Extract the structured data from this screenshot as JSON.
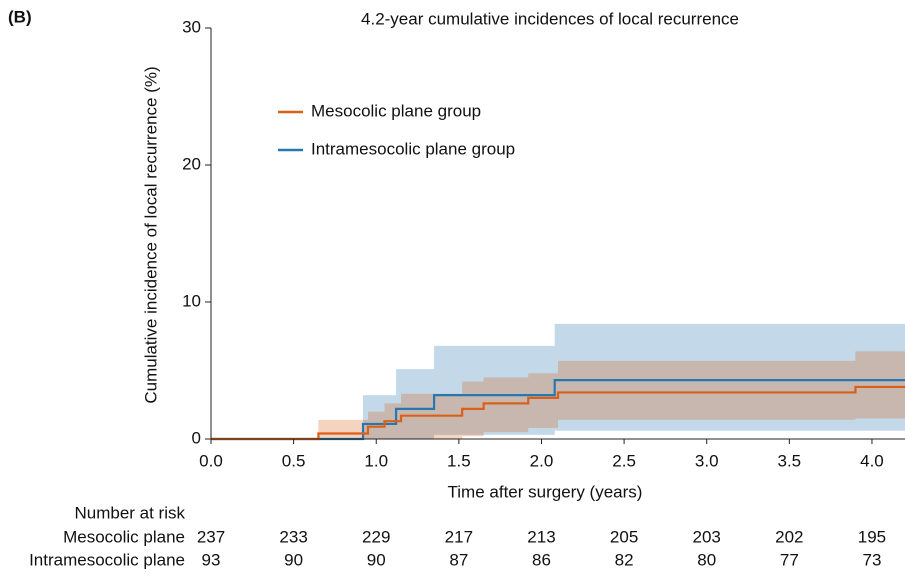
{
  "panel_label": "(B)",
  "chart_data": {
    "type": "step",
    "title": "4.2-year cumulative incidences of local recurrence",
    "x_label": "Time after surgery (years)",
    "y_label": "Cumulative incidence of local recurrence (%)",
    "xlim": [
      0,
      4.2
    ],
    "ylim": [
      0,
      30
    ],
    "xticks": [
      {
        "value": 0,
        "label": "0.0"
      },
      0.5,
      {
        "value": 1,
        "label": "1.0"
      },
      1.5,
      {
        "value": 2,
        "label": "2.0"
      },
      2.5,
      {
        "value": 3,
        "label": "3.0"
      },
      3.5,
      {
        "value": 4,
        "label": "4.0"
      }
    ],
    "yticks": [
      0,
      10,
      20,
      30
    ],
    "series": [
      {
        "name": "Intramesocolic plane group",
        "color": "#2878b0",
        "x": [
          0,
          0.92,
          1.12,
          1.35,
          2.08,
          4.2
        ],
        "values": [
          0,
          1.1,
          2.2,
          3.2,
          4.3,
          4.3
        ],
        "ci_lower": [
          0,
          0,
          0,
          0.3,
          0.6,
          0.6
        ],
        "ci_upper": [
          0,
          3.2,
          5.1,
          6.8,
          8.4,
          8.4
        ]
      },
      {
        "name": "Mesocolic plane group",
        "color": "#d9601a",
        "x": [
          0,
          0.65,
          0.95,
          1.05,
          1.15,
          1.52,
          1.65,
          1.92,
          2.1,
          3.9,
          4.2
        ],
        "values": [
          0,
          0.4,
          0.9,
          1.3,
          1.7,
          2.2,
          2.6,
          3.0,
          3.4,
          3.8,
          3.8
        ],
        "ci_lower": [
          0,
          0,
          0,
          0,
          0,
          0.2,
          0.5,
          0.8,
          1.4,
          1.5,
          1.5
        ],
        "ci_upper": [
          0,
          1.4,
          2.0,
          2.6,
          3.3,
          4.2,
          4.5,
          4.8,
          5.7,
          6.4,
          6.4
        ]
      }
    ],
    "legend_order": [
      1,
      0
    ],
    "risk_table": {
      "title": "Number at risk",
      "rows": [
        {
          "name": "Mesocolic plane",
          "values": [
            237,
            233,
            229,
            217,
            213,
            205,
            203,
            202,
            195
          ]
        },
        {
          "name": "Intramesocolic plane",
          "values": [
            93,
            90,
            90,
            87,
            86,
            82,
            80,
            77,
            73
          ]
        }
      ]
    }
  }
}
